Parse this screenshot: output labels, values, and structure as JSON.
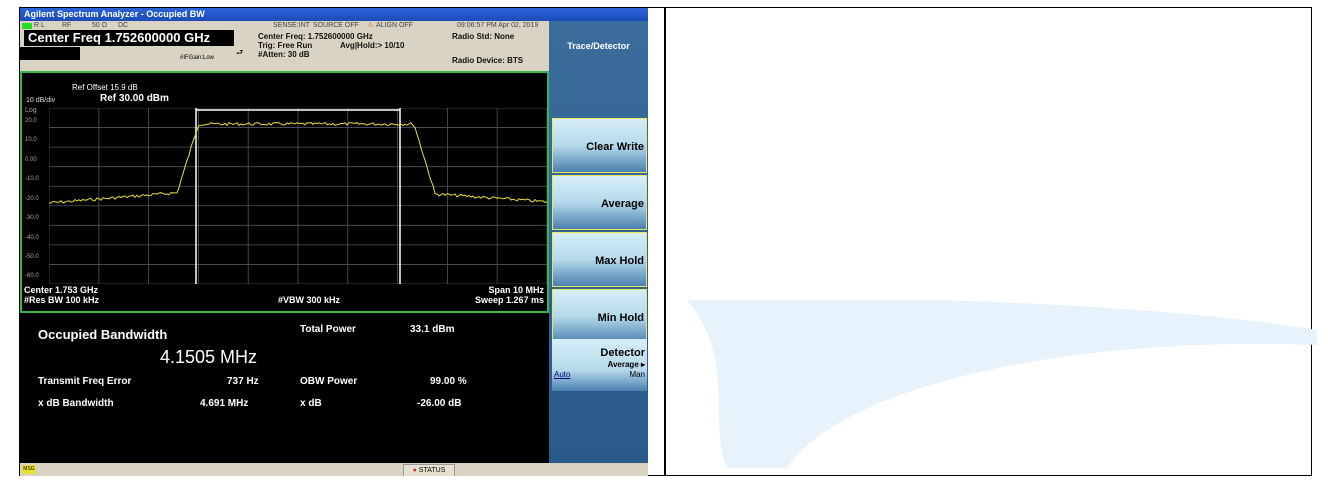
{
  "window": {
    "title": "Agilent Spectrum Analyzer - Occupied BW"
  },
  "topbar": {
    "rl": "R L",
    "rf": "RF",
    "ohm": "50 Ω",
    "dc": "DC",
    "sense": "SENSE:INT",
    "source": "SOURCE OFF",
    "align": "ALIGN OFF",
    "datetime": "09:06:57 PM Apr 02, 2019",
    "center_freq_big": "Center Freq 1.752600000 GHz",
    "ifgain": "#IFGain:Low",
    "center_freq_small": "Center Freq: 1.752600000 GHz",
    "trig": "Trig: Free Run",
    "avg_hold": "Avg|Hold:> 10/10",
    "atten": "#Atten: 30 dB",
    "radio_std": "Radio Std: None",
    "radio_device": "Radio Device: BTS"
  },
  "graph": {
    "ref_offset": "Ref Offset 15.9 dB",
    "scale": "10 dB/div",
    "ref_level": "Ref 30.00 dBm",
    "log": "Log",
    "center": "Center  1.753 GHz",
    "res_bw": "#Res BW  100 kHz",
    "vbw": "#VBW  300 kHz",
    "span": "Span 10 MHz",
    "sweep": "Sweep  1.267 ms",
    "trace_color": "#e8e03a",
    "y_ticks": [
      "20.0",
      "10.0",
      "0.00",
      "-10.0",
      "-20.0",
      "-30.0",
      "-40.0",
      "-50.0",
      "-60.0"
    ]
  },
  "results": {
    "occupied_bw_label": "Occupied Bandwidth",
    "occupied_bw_value": "4.1505 MHz",
    "total_power_label": "Total Power",
    "total_power_value": "33.1 dBm",
    "tx_freq_error_label": "Transmit Freq Error",
    "tx_freq_error_value": "737 Hz",
    "obw_power_label": "OBW Power",
    "obw_power_value": "99.00 %",
    "xdb_bw_label": "x dB Bandwidth",
    "xdb_bw_value": "4.691 MHz",
    "xdb_label": "x dB",
    "xdb_value": "-26.00 dB"
  },
  "softkeys": {
    "title": "Trace/Detector",
    "clear_write": "Clear Write",
    "average": "Average",
    "max_hold": "Max Hold",
    "min_hold": "Min Hold",
    "detector": "Detector",
    "detector_sub": "Average ▸",
    "auto": "Auto",
    "man": "Man"
  },
  "statusbar": {
    "msg": "MSG",
    "status": "STATUS"
  }
}
